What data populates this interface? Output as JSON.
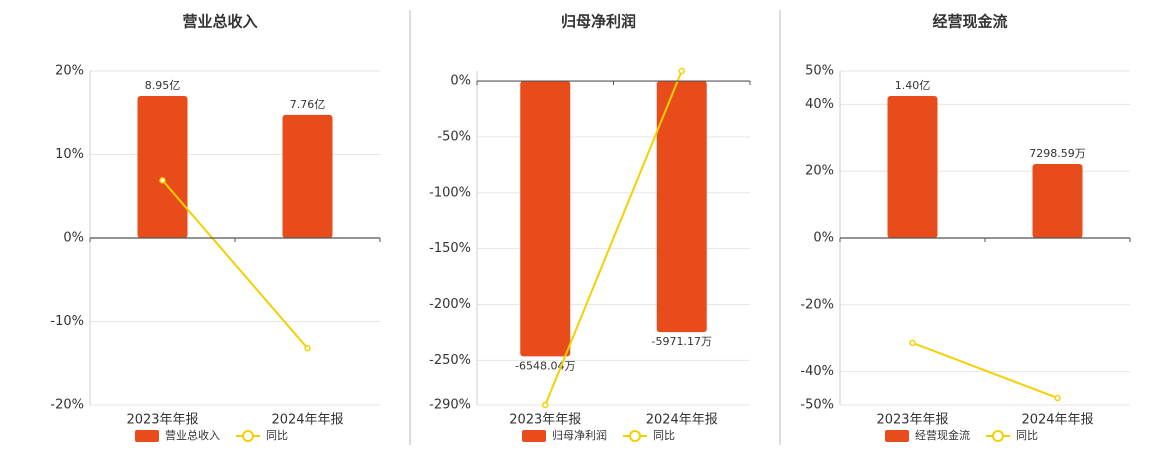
{
  "chart_data": [
    {
      "type": "bar",
      "title": "营业总收入",
      "categories": [
        "2023年年报",
        "2024年年报"
      ],
      "series": [
        {
          "name": "营业总收入",
          "type": "bar",
          "color": "#e84c1a",
          "values": [
            895000000,
            776000000
          ],
          "value_labels": [
            "8.95亿",
            "7.76亿"
          ]
        },
        {
          "name": "同比",
          "type": "line",
          "color": "#f5d000",
          "values": [
            6.9,
            -13.2
          ]
        }
      ],
      "ylim": [
        -20,
        20
      ],
      "yticks": [
        {
          "value": 20,
          "label": "20%"
        },
        {
          "value": 10,
          "label": "10%"
        },
        {
          "value": 0,
          "label": "0%"
        },
        {
          "value": -10,
          "label": "-10%"
        },
        {
          "value": -20,
          "label": "-20%"
        }
      ],
      "grid": true
    },
    {
      "type": "bar",
      "title": "归母净利润",
      "categories": [
        "2023年年报",
        "2024年年报"
      ],
      "series": [
        {
          "name": "归母净利润",
          "type": "bar",
          "color": "#e84c1a",
          "values": [
            -65480400,
            -59711700
          ],
          "value_labels": [
            "-6548.04万",
            "-5971.17万"
          ]
        },
        {
          "name": "同比",
          "type": "line",
          "color": "#f5d000",
          "values": [
            -290,
            9
          ]
        }
      ],
      "ylim": [
        -290,
        9
      ],
      "yticks": [
        {
          "value": 0,
          "label": "0%"
        },
        {
          "value": -50,
          "label": "-50%"
        },
        {
          "value": -100,
          "label": "-100%"
        },
        {
          "value": -150,
          "label": "-150%"
        },
        {
          "value": -200,
          "label": "-200%"
        },
        {
          "value": -250,
          "label": "-250%"
        },
        {
          "value": -290,
          "label": "-290%"
        }
      ],
      "grid": true
    },
    {
      "type": "bar",
      "title": "经营现金流",
      "categories": [
        "2023年年报",
        "2024年年报"
      ],
      "series": [
        {
          "name": "经营现金流",
          "type": "bar",
          "color": "#e84c1a",
          "values": [
            140000000,
            72985900
          ],
          "value_labels": [
            "1.40亿",
            "7298.59万"
          ]
        },
        {
          "name": "同比",
          "type": "line",
          "color": "#f5d000",
          "values": [
            -31.4,
            -47.9
          ]
        }
      ],
      "ylim": [
        -50,
        50
      ],
      "yticks": [
        {
          "value": 50,
          "label": "50%"
        },
        {
          "value": 40,
          "label": "40%"
        },
        {
          "value": 20,
          "label": "20%"
        },
        {
          "value": 0,
          "label": "0%"
        },
        {
          "value": -20,
          "label": "-20%"
        },
        {
          "value": -40,
          "label": "-40%"
        },
        {
          "value": -50,
          "label": "-50%"
        }
      ],
      "grid": true
    }
  ]
}
